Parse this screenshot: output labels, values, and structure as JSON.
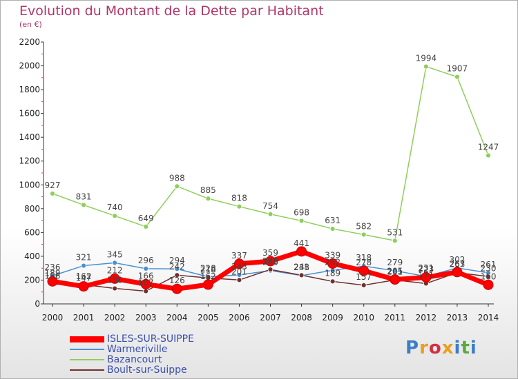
{
  "title": "Evolution du Montant de la Dette par Habitant",
  "unit": "(en €)",
  "logo": {
    "text": "Proxiti",
    "letters": [
      {
        "ch": "P",
        "color": "#3a7ec8"
      },
      {
        "ch": "r",
        "color": "#e8a020"
      },
      {
        "ch": "o",
        "color": "#d03040"
      },
      {
        "ch": "x",
        "color": "#e8a020"
      },
      {
        "ch": "i",
        "color": "#3a7ec8"
      },
      {
        "ch": "t",
        "color": "#5aaa40"
      },
      {
        "ch": "i",
        "color": "#3a7ec8"
      }
    ]
  },
  "chart_data": {
    "type": "line",
    "x": [
      "2000",
      "2001",
      "2002",
      "2003",
      "2004",
      "2005",
      "2006",
      "2007",
      "2008",
      "2009",
      "2010",
      "2011",
      "2012",
      "2013",
      "2014"
    ],
    "ylim": [
      0,
      2200
    ],
    "yticks": [
      "0",
      "200",
      "400",
      "600",
      "800",
      "1000",
      "1200",
      "1400",
      "1600",
      "1800",
      "2000",
      "2200"
    ],
    "grid": false,
    "series": [
      {
        "name": "Bazancourt",
        "color": "#8fce5a",
        "width": 1.5,
        "marker": 3.5,
        "values": [
          927,
          831,
          740,
          649,
          988,
          885,
          818,
          754,
          698,
          631,
          582,
          531,
          1994,
          1907,
          1247
        ],
        "labels": [
          "927",
          "831",
          "740",
          "649",
          "988",
          "885",
          "818",
          "754",
          "698",
          "631",
          "582",
          "531",
          "1994",
          "1907",
          "1247"
        ]
      },
      {
        "name": "Warmeriville",
        "color": "#4a90d0",
        "width": 1.5,
        "marker": 3.5,
        "values": [
          236,
          321,
          345,
          296,
          294,
          228,
          243,
          280,
          238,
          282,
          318,
          279,
          231,
          302,
          261
        ],
        "labels": [
          "236",
          "321",
          "345",
          "296",
          "294",
          "228",
          "243",
          "280",
          "238",
          "282",
          "318",
          "279",
          "231",
          "302",
          "261"
        ]
      },
      {
        "name": "Boult-sur-Suippe",
        "color": "#703030",
        "width": 1.5,
        "marker": 3.5,
        "values": [
          166,
          162,
          130,
          107,
          242,
          218,
          201,
          289,
          241,
          189,
          157,
          201,
          171,
          263,
          230
        ],
        "labels": [
          "166",
          "162",
          "130",
          "107",
          "242",
          "218",
          "201",
          "289",
          "241",
          "189",
          "157",
          "201",
          "171",
          "263",
          "230"
        ]
      },
      {
        "name": "ISLES-SUR-SUIPPE",
        "color": "#ff0000",
        "width": 7,
        "marker": 7,
        "values": [
          189,
          147,
          212,
          166,
          126,
          162,
          337,
          359,
          441,
          339,
          278,
          205,
          223,
          267,
          160
        ],
        "labels": [
          "189",
          "147",
          "212",
          "166",
          "126",
          "162",
          "337",
          "359",
          "441",
          "339",
          "278",
          "205",
          "223",
          "267",
          "160"
        ]
      }
    ],
    "legend": {
      "placement": "bottom-left",
      "order": [
        "ISLES-SUR-SUIPPE",
        "Warmeriville",
        "Bazancourt",
        "Boult-sur-Suippe"
      ]
    }
  }
}
